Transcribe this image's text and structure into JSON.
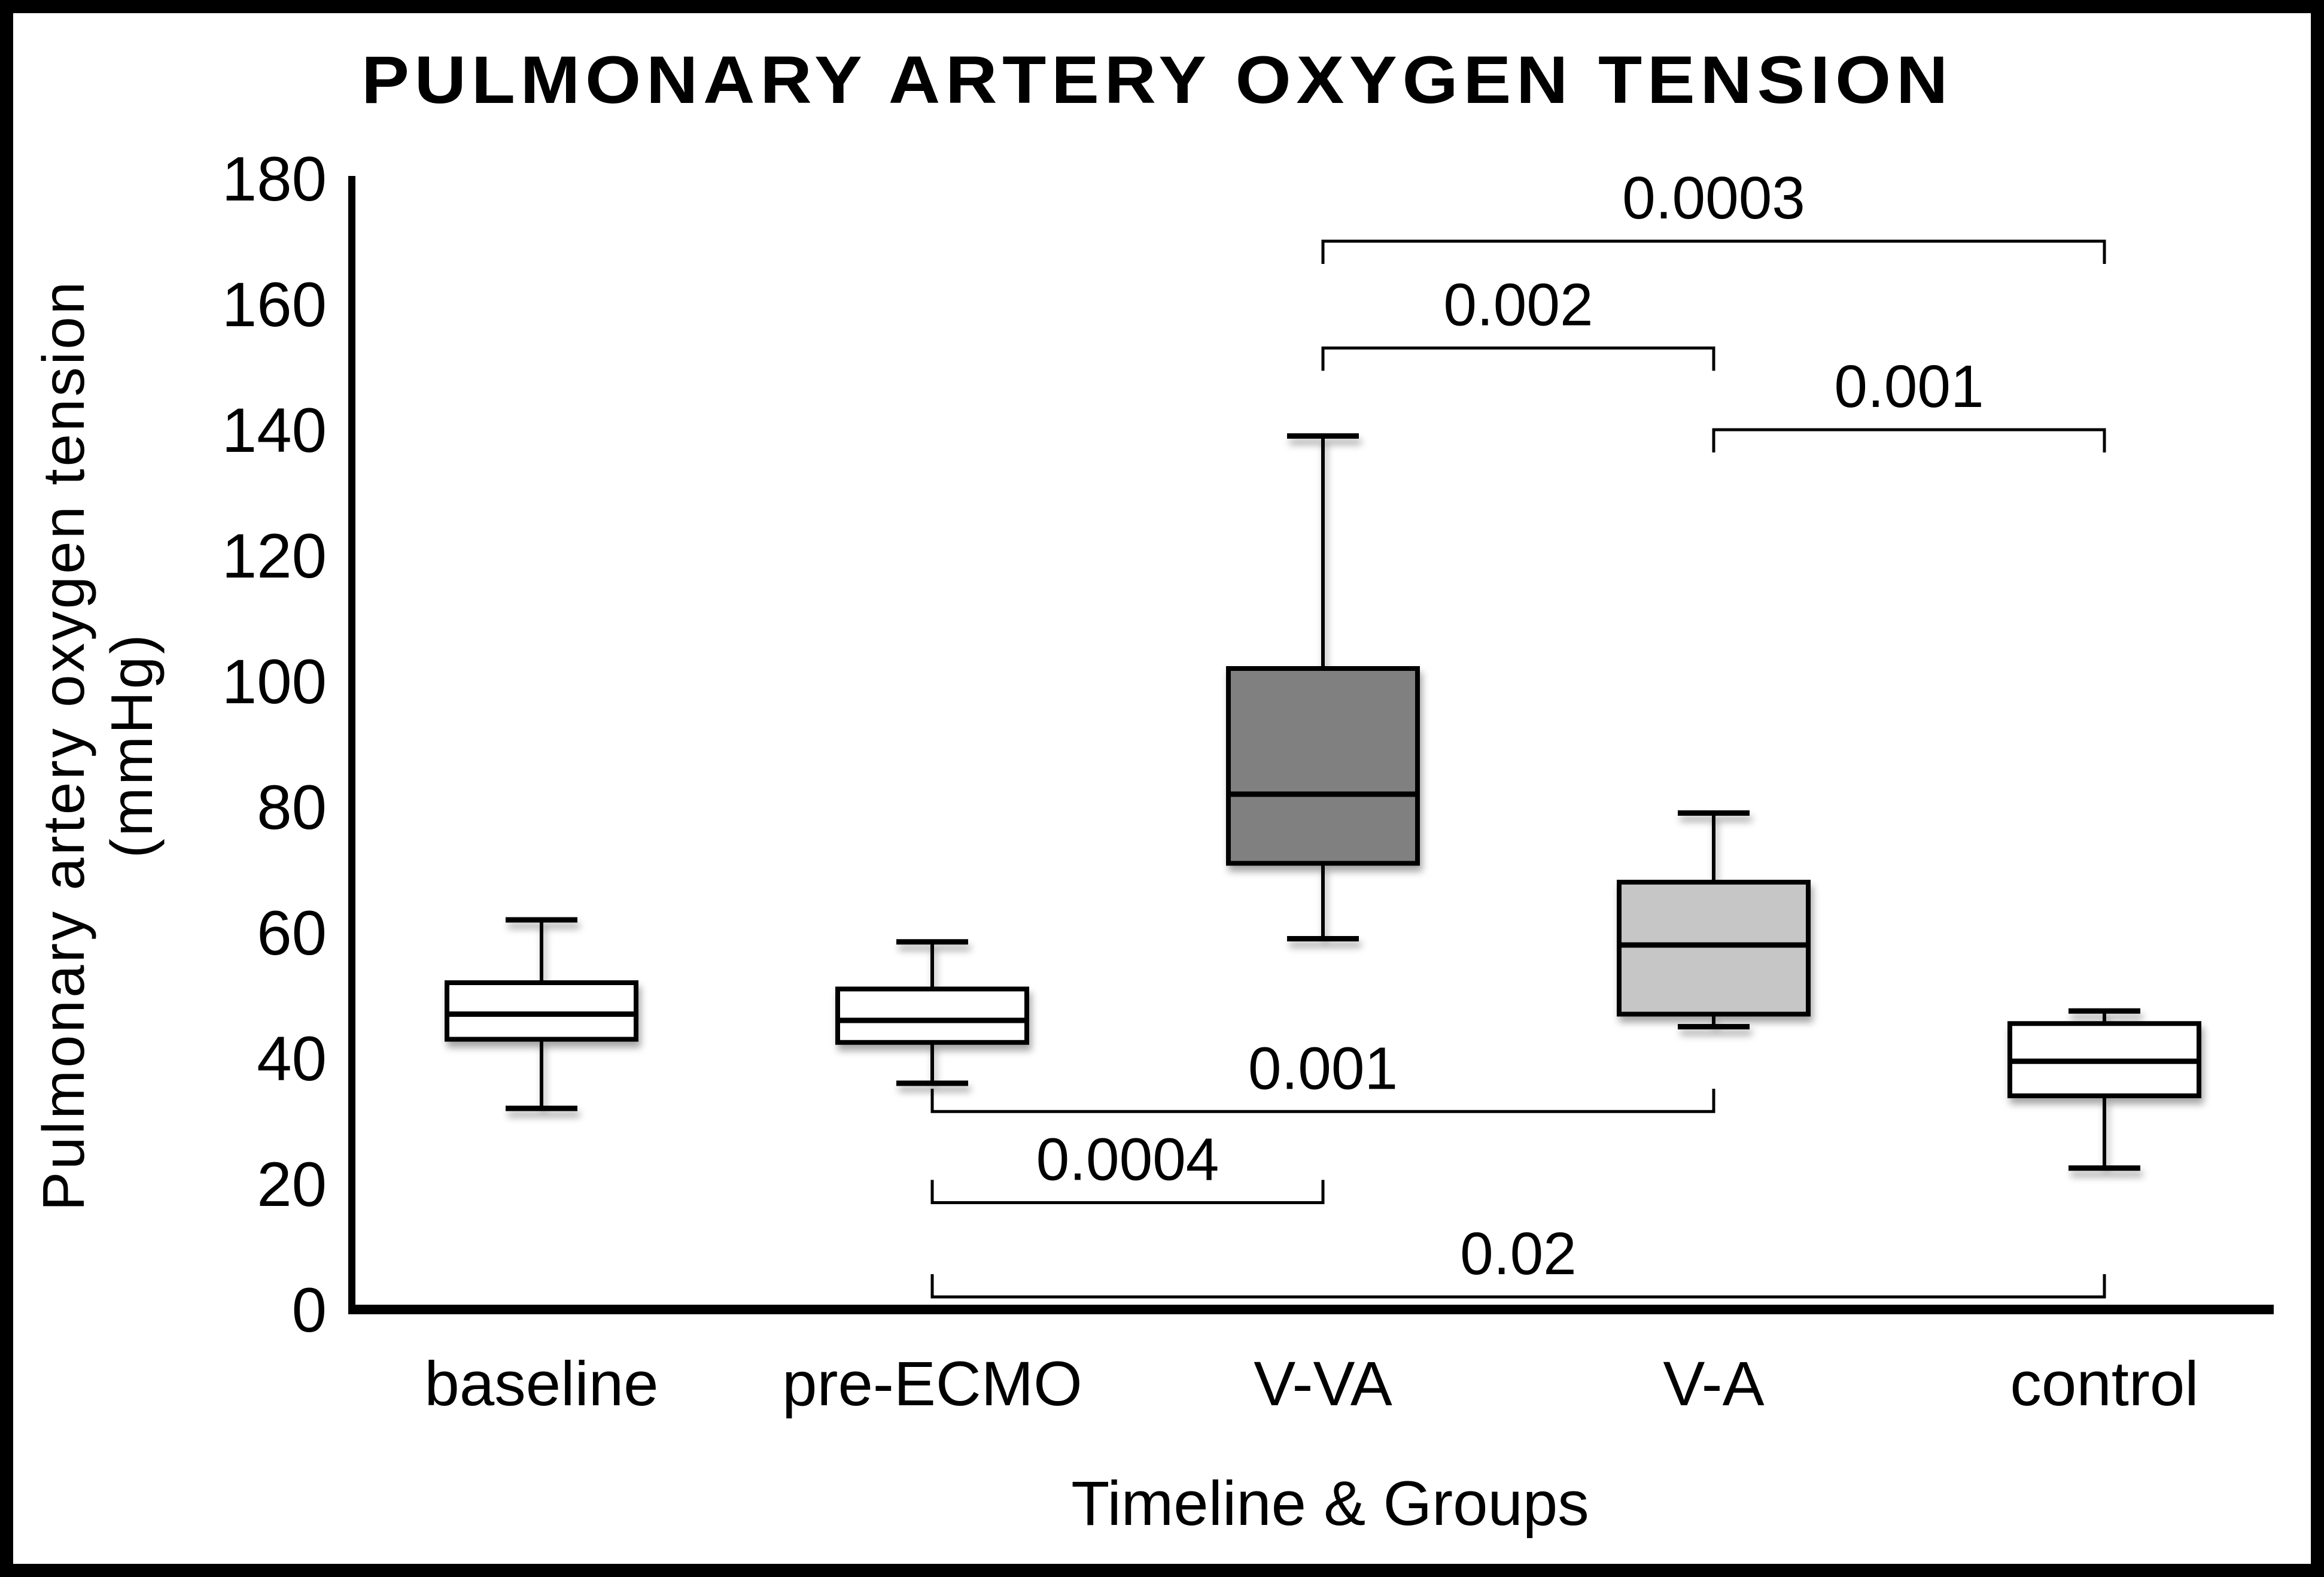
{
  "chart_data": {
    "type": "box",
    "title": "PULMONARY ARTERY OXYGEN TENSION",
    "xlabel": "Timeline & Groups",
    "ylabel_line1": "Pulmonary artery oxygen tension",
    "ylabel_line2": "(mmHg)",
    "ylim": [
      0,
      180
    ],
    "yticks": [
      0,
      20,
      40,
      60,
      80,
      100,
      120,
      140,
      160,
      180
    ],
    "grid": "off",
    "legend": "none",
    "categories": [
      "baseline",
      "pre-ECMO",
      "V-VA",
      "V-A",
      "control"
    ],
    "series": [
      {
        "name": "baseline",
        "whisker_low": 32,
        "q1": 43,
        "median": 47,
        "q3": 52,
        "whisker_high": 62,
        "fill": "#ffffff"
      },
      {
        "name": "pre-ECMO",
        "whisker_low": 36,
        "q1": 42.5,
        "median": 46,
        "q3": 51,
        "whisker_high": 58.5,
        "fill": "#ffffff"
      },
      {
        "name": "V-VA",
        "whisker_low": 59,
        "q1": 71,
        "median": 82,
        "q3": 102,
        "whisker_high": 139,
        "fill": "#808080"
      },
      {
        "name": "V-A",
        "whisker_low": 45,
        "q1": 47,
        "median": 58,
        "q3": 68,
        "whisker_high": 79,
        "fill": "#c6c6c6"
      },
      {
        "name": "control",
        "whisker_low": 22.5,
        "q1": 34,
        "median": 39.5,
        "q3": 45.5,
        "whisker_high": 47.5,
        "fill": "#ffffff"
      }
    ],
    "significance_brackets": [
      {
        "label": "0.0003",
        "from": "V-VA",
        "to": "control",
        "line_y": 170,
        "tick_dir": "down"
      },
      {
        "label": "0.002",
        "from": "V-VA",
        "to": "V-A",
        "line_y": 153,
        "tick_dir": "down"
      },
      {
        "label": "0.001",
        "from": "V-A",
        "to": "control",
        "line_y": 140,
        "tick_dir": "down"
      },
      {
        "label": "0.001",
        "from": "pre-ECMO",
        "to": "V-A",
        "line_y": 31.5,
        "tick_dir": "up"
      },
      {
        "label": "0.0004",
        "from": "pre-ECMO",
        "to": "V-VA",
        "line_y": 17,
        "tick_dir": "up"
      },
      {
        "label": "0.02",
        "from": "pre-ECMO",
        "to": "control",
        "line_y": 2,
        "tick_dir": "up"
      }
    ],
    "colors": {
      "axis": "#000000",
      "box_border": "#000000",
      "median_line": "#000000",
      "whisker": "#000000",
      "bracket": "#000000",
      "frame_border": "#000000",
      "background": "#ffffff",
      "vva_fill": "#808080",
      "va_fill": "#c6c6c6"
    }
  }
}
